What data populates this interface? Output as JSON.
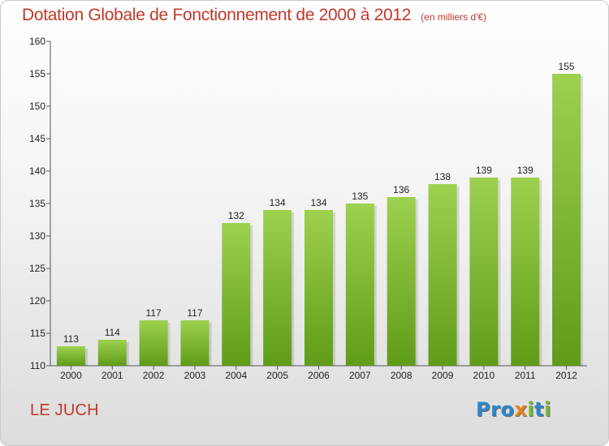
{
  "chart_data": {
    "type": "bar",
    "title": "Dotation Globale de Fonctionnement de 2000 à 2012",
    "subtitle": "(en milliers d'€)",
    "categories": [
      "2000",
      "2001",
      "2002",
      "2003",
      "2004",
      "2005",
      "2006",
      "2007",
      "2008",
      "2009",
      "2010",
      "2011",
      "2012"
    ],
    "values": [
      113,
      114,
      117,
      117,
      132,
      134,
      134,
      135,
      136,
      138,
      139,
      139,
      155
    ],
    "ylim": [
      110,
      160
    ],
    "yticks": [
      110,
      115,
      120,
      125,
      130,
      135,
      140,
      145,
      150,
      155,
      160
    ],
    "grid": false,
    "bar_color_top": "#9dd14f",
    "bar_color_bottom": "#5f9c18"
  },
  "footer": {
    "commune": "LE JUCH"
  },
  "logo": {
    "letters": [
      {
        "char": "P",
        "color": "#2e86c9"
      },
      {
        "char": "r",
        "color": "#2e86c9"
      },
      {
        "char": "o",
        "color": "#2e86c9"
      },
      {
        "char": "x",
        "color": "#e8821e"
      },
      {
        "char": "i",
        "color": "#78b833"
      },
      {
        "char": "t",
        "color": "#2e86c9"
      },
      {
        "char": "i",
        "color": "#78b833"
      }
    ]
  }
}
